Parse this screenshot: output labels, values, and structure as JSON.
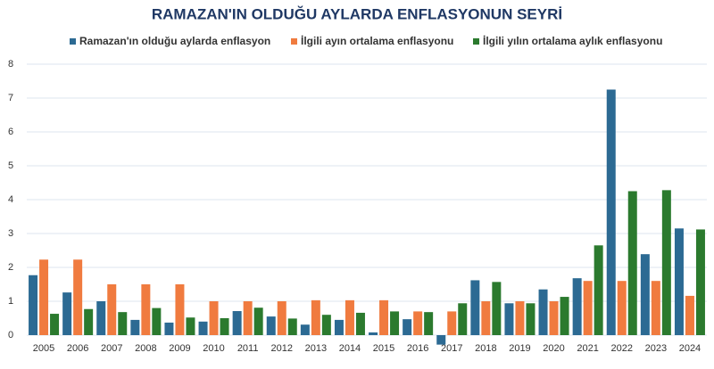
{
  "chart_data": {
    "type": "bar",
    "title": "RAMAZAN'IN OLDUĞU AYLARDA ENFLASYONUN SEYRİ",
    "categories": [
      "2005",
      "2006",
      "2007",
      "2008",
      "2009",
      "2010",
      "2011",
      "2012",
      "2013",
      "2014",
      "2015",
      "2016",
      "2017",
      "2018",
      "2019",
      "2020",
      "2021",
      "2022",
      "2023",
      "2024"
    ],
    "series": [
      {
        "name": "Ramazan'ın olduğu aylarda enflasyon",
        "color": "#2c6a93",
        "values": [
          1.77,
          1.26,
          1.0,
          0.45,
          0.37,
          0.4,
          0.71,
          0.55,
          0.31,
          0.45,
          0.08,
          0.47,
          -0.28,
          1.62,
          0.94,
          1.35,
          1.68,
          7.25,
          2.39,
          3.15
        ]
      },
      {
        "name": "İlgili ayın ortalama enflasyonu",
        "color": "#f07b3f",
        "values": [
          2.23,
          2.23,
          1.5,
          1.5,
          1.5,
          1.0,
          1.0,
          1.0,
          1.03,
          1.03,
          1.03,
          0.7,
          0.7,
          1.0,
          1.0,
          1.0,
          1.6,
          1.6,
          1.6,
          1.16
        ]
      },
      {
        "name": "İlgili yılın ortalama aylık enflasyonu",
        "color": "#2b7a2e",
        "values": [
          0.63,
          0.77,
          0.68,
          0.8,
          0.52,
          0.5,
          0.81,
          0.49,
          0.6,
          0.66,
          0.7,
          0.68,
          0.94,
          1.57,
          0.94,
          1.13,
          2.65,
          4.25,
          4.28,
          3.12
        ]
      }
    ],
    "ylim": [
      -1,
      8
    ],
    "yticks": [
      0,
      1,
      2,
      3,
      4,
      5,
      6,
      7,
      8
    ],
    "grid": true,
    "legend": "top"
  }
}
